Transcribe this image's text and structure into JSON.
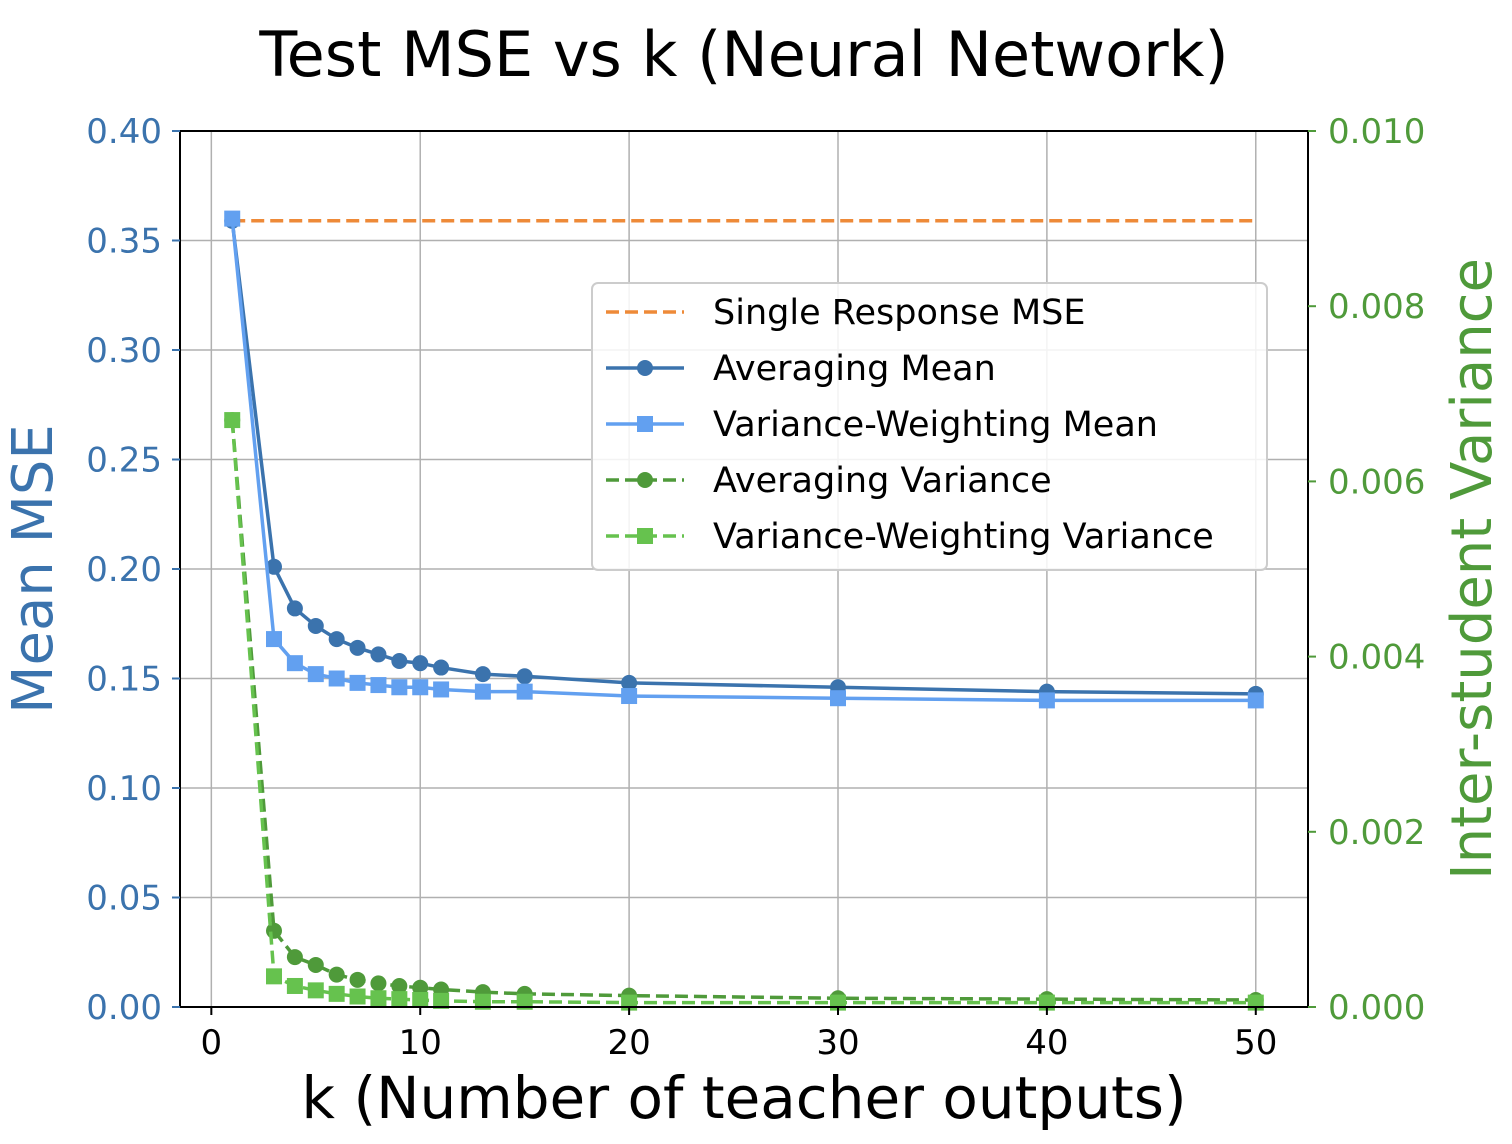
{
  "chart_data": {
    "type": "line",
    "title": "Test MSE vs k (Neural Network)",
    "xlabel": "k (Number of teacher outputs)",
    "ylabel": "Mean MSE",
    "y2label": "Inter-student Variance",
    "xlim": [
      -1.5,
      52.5
    ],
    "ylim": [
      0,
      0.4
    ],
    "y2lim": [
      0,
      0.01
    ],
    "xticks": [
      0,
      10,
      20,
      30,
      40,
      50
    ],
    "yticks": [
      0.0,
      0.05,
      0.1,
      0.15,
      0.2,
      0.25,
      0.3,
      0.35,
      0.4
    ],
    "y2ticks": [
      0.0,
      0.002,
      0.004,
      0.006,
      0.008,
      0.01
    ],
    "xtick_labels": [
      "0",
      "10",
      "20",
      "30",
      "40",
      "50"
    ],
    "ytick_labels": [
      "0.00",
      "0.05",
      "0.10",
      "0.15",
      "0.20",
      "0.25",
      "0.30",
      "0.35",
      "0.40"
    ],
    "y2tick_labels": [
      "0.000",
      "0.002",
      "0.004",
      "0.006",
      "0.008",
      "0.010"
    ],
    "grid": true,
    "legend_position": "upper-right",
    "colors": {
      "left_axis": "#3b73ad",
      "right_axis": "#4f9a3a"
    },
    "series": [
      {
        "name": "Single Response MSE",
        "axis": "left",
        "color": "#ee8a38",
        "style": "dashed",
        "marker": "none",
        "x": [
          1,
          50
        ],
        "y": [
          0.359,
          0.359
        ]
      },
      {
        "name": "Averaging Mean",
        "axis": "left",
        "color": "#3b73ad",
        "style": "solid",
        "marker": "circle",
        "x": [
          1,
          3,
          4,
          5,
          6,
          7,
          8,
          9,
          10,
          11,
          13,
          15,
          20,
          30,
          40,
          50
        ],
        "y": [
          0.359,
          0.201,
          0.182,
          0.174,
          0.168,
          0.164,
          0.161,
          0.158,
          0.157,
          0.155,
          0.152,
          0.151,
          0.148,
          0.146,
          0.144,
          0.143
        ]
      },
      {
        "name": "Variance-Weighting Mean",
        "axis": "left",
        "color": "#62a0f0",
        "style": "solid",
        "marker": "square",
        "x": [
          1,
          3,
          4,
          5,
          6,
          7,
          8,
          9,
          10,
          11,
          13,
          15,
          20,
          30,
          40,
          50
        ],
        "y": [
          0.36,
          0.168,
          0.157,
          0.152,
          0.15,
          0.148,
          0.147,
          0.146,
          0.146,
          0.145,
          0.144,
          0.144,
          0.142,
          0.141,
          0.14,
          0.14
        ]
      },
      {
        "name": "Averaging Variance",
        "axis": "right",
        "color": "#4f9a3a",
        "style": "dashed",
        "marker": "circle",
        "x": [
          1,
          3,
          4,
          5,
          6,
          7,
          8,
          9,
          10,
          11,
          13,
          15,
          20,
          30,
          40,
          50
        ],
        "y": [
          0.0067,
          0.00087,
          0.00057,
          0.00048,
          0.00037,
          0.00031,
          0.00027,
          0.00024,
          0.00022,
          0.0002,
          0.00017,
          0.00015,
          0.00013,
          0.0001,
          9e-05,
          8e-05
        ]
      },
      {
        "name": "Variance-Weighting Variance",
        "axis": "right",
        "color": "#66c24e",
        "style": "dashed",
        "marker": "square",
        "x": [
          1,
          3,
          4,
          5,
          6,
          7,
          8,
          9,
          10,
          11,
          13,
          15,
          20,
          30,
          40,
          50
        ],
        "y": [
          0.0067,
          0.00035,
          0.00024,
          0.00019,
          0.00015,
          0.00012,
          0.0001,
          9e-05,
          8e-05,
          7e-05,
          6e-05,
          6e-05,
          5e-05,
          5e-05,
          5e-05,
          5e-05
        ]
      }
    ]
  }
}
